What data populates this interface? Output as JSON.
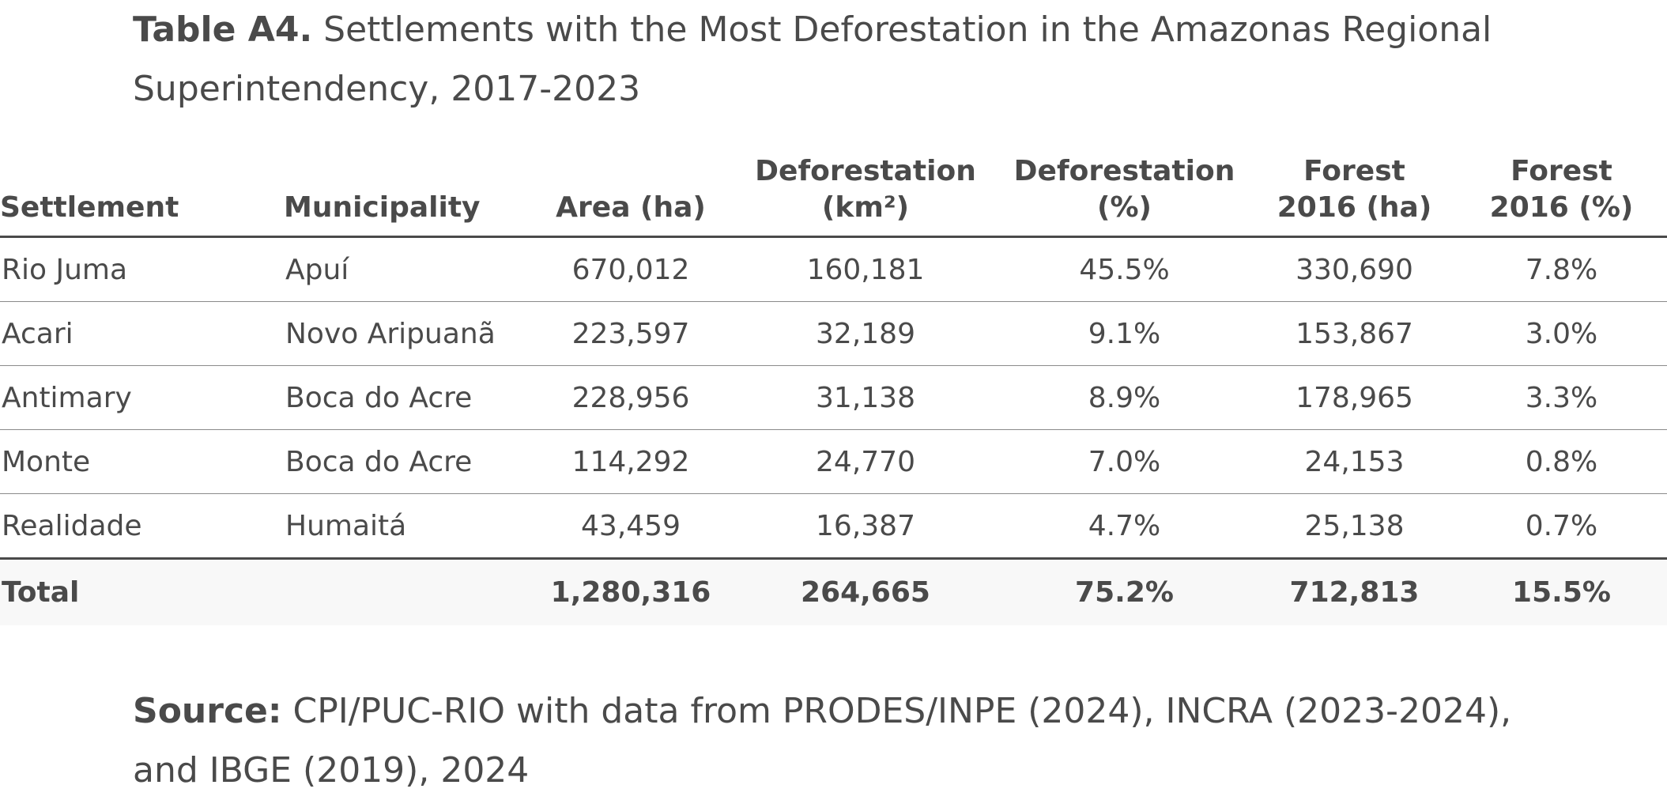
{
  "title": {
    "label": "Table A4.",
    "text": "Settlements with the Most Deforestation in the Amazonas Regional Superintendency, 2017-2023"
  },
  "table": {
    "headers": [
      [
        "Settlement"
      ],
      [
        "Municipality"
      ],
      [
        "Area (ha)"
      ],
      [
        "Deforestation",
        "(km²)"
      ],
      [
        "Deforestation",
        "(%)"
      ],
      [
        "Forest",
        "2016 (ha)"
      ],
      [
        "Forest",
        "2016 (%)"
      ]
    ],
    "rows": [
      [
        "Rio Juma",
        "Apuí",
        "670,012",
        "160,181",
        "45.5%",
        "330,690",
        "7.8%"
      ],
      [
        "Acari",
        "Novo Aripuanã",
        "223,597",
        "32,189",
        "9.1%",
        "153,867",
        "3.0%"
      ],
      [
        "Antimary",
        "Boca do Acre",
        "228,956",
        "31,138",
        "8.9%",
        "178,965",
        "3.3%"
      ],
      [
        "Monte",
        "Boca do Acre",
        "114,292",
        "24,770",
        "7.0%",
        "24,153",
        "0.8%"
      ],
      [
        "Realidade",
        "Humaitá",
        "43,459",
        "16,387",
        "4.7%",
        "25,138",
        "0.7%"
      ]
    ],
    "total": [
      "Total",
      "",
      "1,280,316",
      "264,665",
      "75.2%",
      "712,813",
      "15.5%"
    ]
  },
  "source": {
    "label": "Source:",
    "text": "CPI/PUC-RIO with data from PRODES/INPE (2024), INCRA (2023-2024), and IBGE (2019), 2024"
  }
}
